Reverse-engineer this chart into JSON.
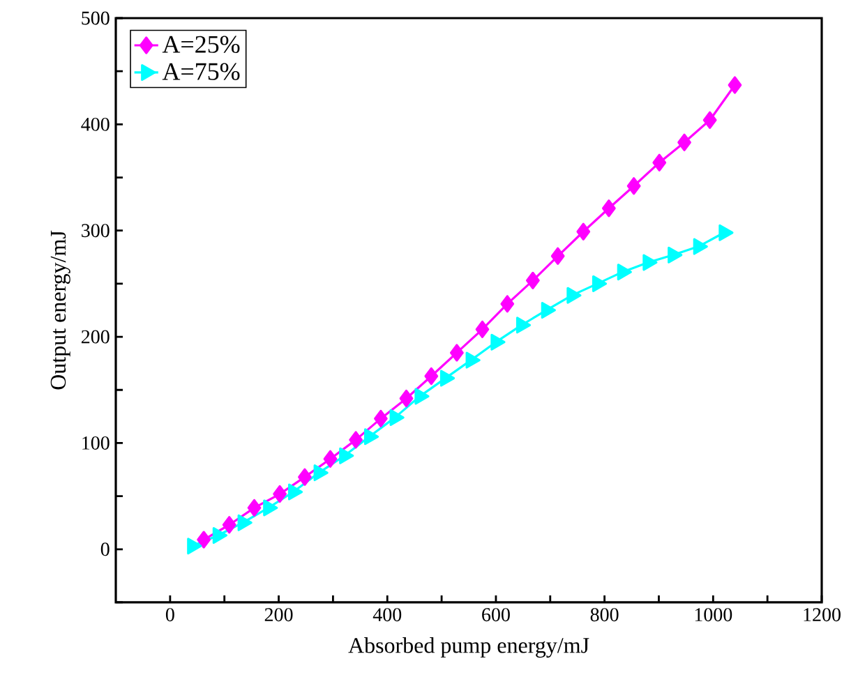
{
  "chart_data": {
    "type": "line",
    "xlabel": "Absorbed pump energy/mJ",
    "ylabel": "Output energy/mJ",
    "xlim": [
      -100,
      1200
    ],
    "ylim": [
      -50,
      500
    ],
    "xticks": [
      0,
      {
        "value": 100,
        "label": null
      },
      200,
      {
        "value": 300,
        "label": null
      },
      400,
      {
        "value": 500,
        "label": null
      },
      600,
      {
        "value": 700,
        "label": null
      },
      800,
      {
        "value": 900,
        "label": null
      },
      1000,
      {
        "value": 1100,
        "label": null
      },
      1200
    ],
    "yticks": [
      {
        "value": -50,
        "label": null
      },
      0,
      {
        "value": 50,
        "label": null
      },
      100,
      {
        "value": 150,
        "label": null
      },
      200,
      {
        "value": 250,
        "label": null
      },
      300,
      {
        "value": 350,
        "label": null
      },
      400,
      {
        "value": 450,
        "label": null
      },
      500
    ],
    "legend": "top left",
    "grid": false,
    "line_style": "solid",
    "series": [
      {
        "name": "A=25%",
        "color": "#ff00ff",
        "marker": "diamond",
        "x": [
          62,
          109,
          155,
          202,
          248,
          295,
          342,
          388,
          435,
          481,
          528,
          575,
          621,
          668,
          714,
          761,
          808,
          854,
          901,
          947,
          994,
          1040
        ],
        "values": [
          9,
          23,
          39,
          52,
          68,
          85,
          103,
          123,
          142,
          163,
          185,
          207,
          231,
          253,
          276,
          299,
          321,
          342,
          364,
          383,
          404,
          437
        ]
      },
      {
        "name": "A=75%",
        "color": "#00ffff",
        "marker": "triangle",
        "x": [
          41,
          88,
          134,
          181,
          227,
          274,
          321,
          367,
          414,
          460,
          507,
          554,
          600,
          647,
          693,
          740,
          787,
          833,
          880,
          926,
          973,
          1020
        ],
        "values": [
          3,
          13,
          25,
          39,
          54,
          72,
          88,
          106,
          124,
          144,
          161,
          178,
          195,
          211,
          225,
          239,
          250,
          261,
          270,
          277,
          285,
          298
        ]
      }
    ]
  }
}
